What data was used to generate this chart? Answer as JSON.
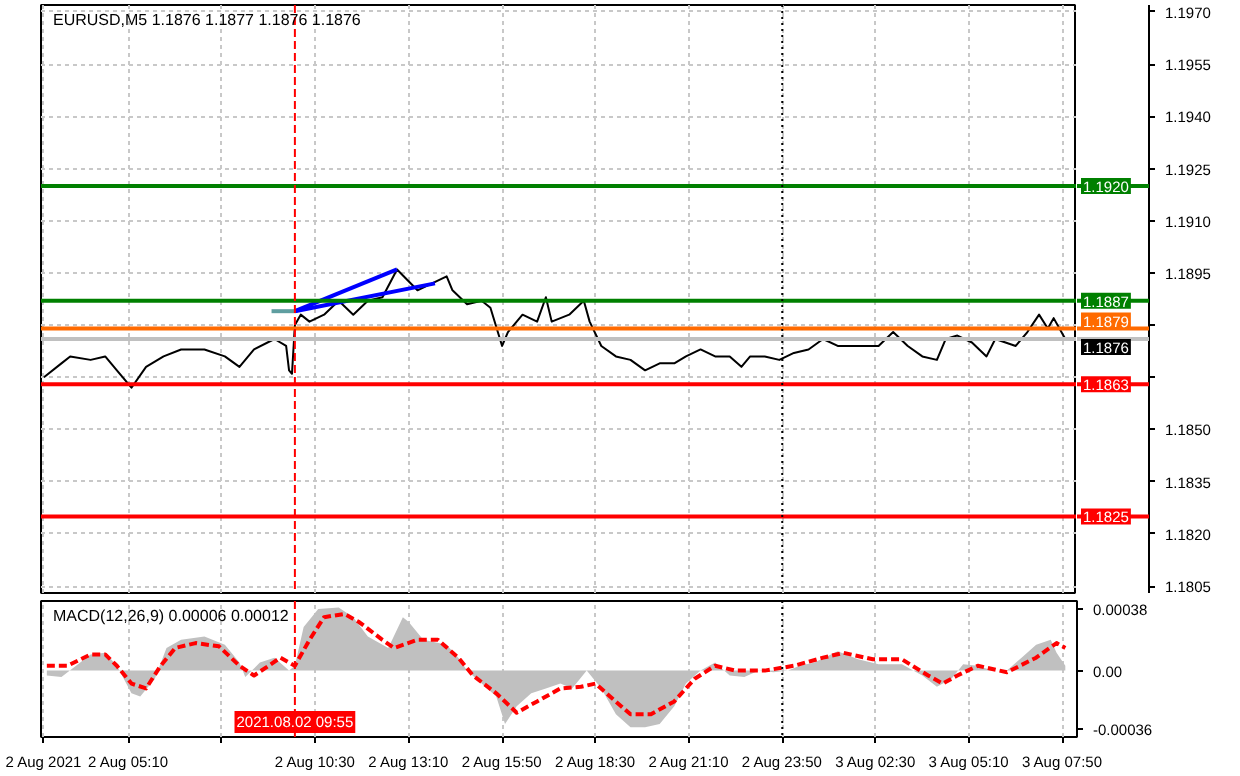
{
  "chart_data": [
    {
      "type": "line",
      "title": "EURUSD,M5  1.1876 1.1877 1.1876 1.1876",
      "x": [
        "2021-08-02T02:45",
        "2021-08-02T03:15",
        "2021-08-02T03:30",
        "2021-08-02T04:05",
        "2021-08-02T04:30",
        "2021-08-02T04:50",
        "2021-08-02T05:15",
        "2021-08-02T05:40",
        "2021-08-02T06:10",
        "2021-08-02T06:40",
        "2021-08-02T07:20",
        "2021-08-02T07:55",
        "2021-08-02T08:20",
        "2021-08-02T08:45",
        "2021-08-02T09:20",
        "2021-08-02T09:40",
        "2021-08-02T09:45",
        "2021-08-02T09:50",
        "2021-08-02T09:55",
        "2021-08-02T10:05",
        "2021-08-02T10:20",
        "2021-08-02T10:45",
        "2021-08-02T11:10",
        "2021-08-02T11:35",
        "2021-08-02T12:00",
        "2021-08-02T12:25",
        "2021-08-02T12:50",
        "2021-08-02T13:25",
        "2021-08-02T13:50",
        "2021-08-02T14:15",
        "2021-08-02T14:25",
        "2021-08-02T14:50",
        "2021-08-02T15:15",
        "2021-08-02T15:30",
        "2021-08-02T15:50",
        "2021-08-02T16:00",
        "2021-08-02T16:25",
        "2021-08-02T16:50",
        "2021-08-02T17:05",
        "2021-08-02T17:15",
        "2021-08-02T17:45",
        "2021-08-02T18:10",
        "2021-08-02T18:20",
        "2021-08-02T18:40",
        "2021-08-02T19:05",
        "2021-08-02T19:30",
        "2021-08-02T19:55",
        "2021-08-02T20:20",
        "2021-08-02T20:45",
        "2021-08-02T21:05",
        "2021-08-02T21:30",
        "2021-08-02T21:55",
        "2021-08-02T22:20",
        "2021-08-02T22:40",
        "2021-08-02T22:55",
        "2021-08-02T23:20",
        "2021-08-02T23:45",
        "2021-08-03T00:10",
        "2021-08-03T00:35",
        "2021-08-03T01:00",
        "2021-08-03T01:25",
        "2021-08-03T01:45",
        "2021-08-03T02:10",
        "2021-08-03T02:35",
        "2021-08-03T03:00",
        "2021-08-03T03:25",
        "2021-08-03T03:50",
        "2021-08-03T04:15",
        "2021-08-03T04:30",
        "2021-08-03T04:50",
        "2021-08-03T05:15",
        "2021-08-03T05:40",
        "2021-08-03T05:55",
        "2021-08-03T06:30",
        "2021-08-03T06:50",
        "2021-08-03T07:10",
        "2021-08-03T07:25",
        "2021-08-03T07:35",
        "2021-08-03T07:55"
      ],
      "series": [
        {
          "color": "#000000",
          "values": [
            1.1865,
            1.1869,
            1.1871,
            1.187,
            1.1871,
            1.1867,
            1.1862,
            1.1868,
            1.1871,
            1.1873,
            1.1873,
            1.1871,
            1.1868,
            1.1873,
            1.1876,
            1.1874,
            1.1867,
            1.1866,
            1.188,
            1.1883,
            1.1881,
            1.1883,
            1.1887,
            1.1883,
            1.1887,
            1.1888,
            1.1896,
            1.189,
            1.1892,
            1.1894,
            1.189,
            1.1886,
            1.1887,
            1.1885,
            1.1874,
            1.1878,
            1.1883,
            1.1881,
            1.1888,
            1.1881,
            1.1883,
            1.1887,
            1.1881,
            1.1874,
            1.1871,
            1.187,
            1.1867,
            1.1869,
            1.1869,
            1.1871,
            1.1873,
            1.1871,
            1.1871,
            1.1868,
            1.1871,
            1.1871,
            1.187,
            1.1872,
            1.1873,
            1.1876,
            1.1874,
            1.1874,
            1.1874,
            1.1874,
            1.1878,
            1.1874,
            1.1871,
            1.187,
            1.1876,
            1.1877,
            1.1875,
            1.1871,
            1.1876,
            1.1874,
            1.1878,
            1.1883,
            1.1879,
            1.1882,
            1.1876
          ]
        },
        {
          "type": "line",
          "color": "#0000ff",
          "x": [
            "2021-08-02T09:55",
            "2021-08-02T12:50"
          ],
          "values": [
            1.1884,
            1.1896
          ]
        },
        {
          "type": "line",
          "color": "#0000ff",
          "x": [
            "2021-08-02T09:55",
            "2021-08-02T13:55"
          ],
          "values": [
            1.1884,
            1.1892
          ]
        },
        {
          "type": "line",
          "color": "#5f9ea0",
          "x": [
            "2021-08-02T09:15",
            "2021-08-02T09:55"
          ],
          "values": [
            1.1884,
            1.1884
          ]
        }
      ],
      "xlim": [
        "2021-08-02T02:40",
        "2021-08-03T08:15"
      ],
      "xticks": [
        {
          "value": "2021-08-02T02:45",
          "label": null
        },
        {
          "value": "2021-08-02T05:10",
          "label": null
        },
        {
          "value": "2021-08-02T07:50",
          "label": null
        },
        {
          "value": "2021-08-02T10:30",
          "label": null
        },
        {
          "value": "2021-08-02T13:10",
          "label": null
        },
        {
          "value": "2021-08-02T15:50",
          "label": null
        },
        {
          "value": "2021-08-02T18:30",
          "label": null
        },
        {
          "value": "2021-08-02T21:10",
          "label": null
        },
        {
          "value": "2021-08-02T23:50",
          "label": null
        },
        {
          "value": "2021-08-03T02:30",
          "label": null
        },
        {
          "value": "2021-08-03T05:10",
          "label": null
        },
        {
          "value": "2021-08-03T07:50",
          "label": null
        }
      ],
      "ylim": [
        1.1803,
        1.1972
      ],
      "yticks": [
        {
          "value": 1.1805,
          "label": "1.1805"
        },
        {
          "value": 1.182,
          "label": "1.1820"
        },
        {
          "value": 1.1835,
          "label": "1.1835"
        },
        {
          "value": 1.185,
          "label": "1.1850"
        },
        {
          "value": 1.1865,
          "label": null
        },
        {
          "value": 1.188,
          "label": null
        },
        {
          "value": 1.1895,
          "label": "1.1895"
        },
        {
          "value": 1.191,
          "label": "1.1910"
        },
        {
          "value": 1.1925,
          "label": "1.1925"
        },
        {
          "value": 1.194,
          "label": "1.1940"
        },
        {
          "value": 1.1955,
          "label": "1.1955"
        },
        {
          "value": 1.197,
          "label": "1.1970"
        }
      ],
      "ref_lines": [
        {
          "axis": "y",
          "value": 1.192,
          "label": "1.1920",
          "color": "#008000",
          "line_style": "solid"
        },
        {
          "axis": "y",
          "value": 1.1887,
          "label": "1.1887",
          "color": "#008000",
          "line_style": "solid"
        },
        {
          "axis": "y",
          "value": 1.1879,
          "label": "1.1879",
          "color": "#ff6a00",
          "line_style": "solid"
        },
        {
          "axis": "y",
          "value": 1.1876,
          "label": "1.1876",
          "color": "#c0c0c0",
          "line_style": "solid"
        },
        {
          "axis": "y",
          "value": 1.1863,
          "label": "1.1863",
          "color": "#ff0000",
          "line_style": "solid"
        },
        {
          "axis": "y",
          "value": 1.1825,
          "label": "1.1825",
          "color": "#ff0000",
          "line_style": "solid"
        },
        {
          "axis": "x",
          "value": "2021-08-02T09:55",
          "color": "#ff0000",
          "line_style": "dashed"
        },
        {
          "axis": "x",
          "value": "2021-08-02T23:50",
          "color": "#000000",
          "line_style": "dotted"
        }
      ],
      "grid": true,
      "tick_labels": "y",
      "line_style": "solid"
    },
    {
      "type": "area",
      "title": "MACD(12,26,9) 0.00006 0.00012",
      "series": [
        {
          "type": "area",
          "color": "#c0c0c0",
          "x": [
            "2021-08-02T02:50",
            "2021-08-02T03:15",
            "2021-08-02T03:40",
            "2021-08-02T04:05",
            "2021-08-02T04:30",
            "2021-08-02T04:50",
            "2021-08-02T05:15",
            "2021-08-02T05:30",
            "2021-08-02T05:55",
            "2021-08-02T06:15",
            "2021-08-02T06:40",
            "2021-08-02T07:20",
            "2021-08-02T07:55",
            "2021-08-02T08:20",
            "2021-08-02T08:30",
            "2021-08-02T08:55",
            "2021-08-02T09:20",
            "2021-08-02T09:45",
            "2021-08-02T09:55",
            "2021-08-02T10:10",
            "2021-08-02T10:35",
            "2021-08-02T11:10",
            "2021-08-02T11:35",
            "2021-08-02T12:00",
            "2021-08-02T12:35",
            "2021-08-02T13:00",
            "2021-08-02T13:10",
            "2021-08-02T13:35",
            "2021-08-02T14:15",
            "2021-08-02T14:35",
            "2021-08-02T14:50",
            "2021-08-02T15:15",
            "2021-08-02T15:40",
            "2021-08-02T15:55",
            "2021-08-02T16:15",
            "2021-08-02T16:40",
            "2021-08-02T17:05",
            "2021-08-02T17:30",
            "2021-08-02T17:50",
            "2021-08-02T18:15",
            "2021-08-02T18:40",
            "2021-08-02T19:05",
            "2021-08-02T19:30",
            "2021-08-02T19:55",
            "2021-08-02T20:20",
            "2021-08-02T20:45",
            "2021-08-02T21:05",
            "2021-08-02T21:30",
            "2021-08-02T21:55",
            "2021-08-02T22:20",
            "2021-08-02T22:45",
            "2021-08-02T23:10",
            "2021-08-02T23:35",
            "2021-08-03T00:00",
            "2021-08-03T00:20",
            "2021-08-03T00:45",
            "2021-08-03T01:25",
            "2021-08-03T02:00",
            "2021-08-03T02:35",
            "2021-08-03T03:15",
            "2021-08-03T03:50",
            "2021-08-03T04:15",
            "2021-08-03T04:40",
            "2021-08-03T05:00",
            "2021-08-03T05:25",
            "2021-08-03T05:50",
            "2021-08-03T06:15",
            "2021-08-03T06:40",
            "2021-08-03T07:05",
            "2021-08-03T07:30",
            "2021-08-03T07:40",
            "2021-08-03T07:55"
          ],
          "values": [
            -3e-05,
            -4e-05,
            3e-05,
            0.0001,
            0.00011,
            3e-05,
            -0.00014,
            -0.00016,
            -5e-05,
            0.00014,
            0.00019,
            0.00021,
            0.00016,
            5e-05,
            -4e-05,
            5e-05,
            8e-05,
            0,
            3e-05,
            0.00027,
            0.00038,
            0.00039,
            0.00033,
            0.00021,
            0.00014,
            0.00033,
            0.0003,
            0.00019,
            0.00016,
            8e-05,
            0,
            -8e-05,
            -0.00016,
            -0.00033,
            -0.00022,
            -0.00014,
            -0.00011,
            -8e-05,
            -0.00011,
            0,
            -0.00011,
            -0.00027,
            -0.00035,
            -0.00035,
            -0.00033,
            -0.00022,
            -8e-05,
            0,
            5e-05,
            -3e-05,
            -4e-05,
            0,
            -1e-05,
            0,
            3e-05,
            5e-05,
            0.00012,
            7e-05,
            4e-05,
            4e-05,
            -3e-05,
            -0.0001,
            -5e-05,
            4e-05,
            3e-05,
            0,
            0,
            8e-05,
            0.00016,
            0.00019,
            0.00011,
            3e-05
          ]
        },
        {
          "type": "line",
          "color": "#ff0000",
          "x": [
            "2021-08-02T02:50",
            "2021-08-02T03:25",
            "2021-08-02T04:05",
            "2021-08-02T04:30",
            "2021-08-02T04:50",
            "2021-08-02T05:15",
            "2021-08-02T05:40",
            "2021-08-02T06:05",
            "2021-08-02T06:30",
            "2021-08-02T07:05",
            "2021-08-02T07:45",
            "2021-08-02T08:20",
            "2021-08-02T08:45",
            "2021-08-02T09:10",
            "2021-08-02T09:30",
            "2021-08-02T09:55",
            "2021-08-02T10:20",
            "2021-08-02T10:45",
            "2021-08-02T11:20",
            "2021-08-02T11:45",
            "2021-08-02T12:25",
            "2021-08-02T12:45",
            "2021-08-02T13:25",
            "2021-08-02T14:00",
            "2021-08-02T14:35",
            "2021-08-02T15:00",
            "2021-08-02T15:40",
            "2021-08-02T16:15",
            "2021-08-02T16:50",
            "2021-08-02T17:30",
            "2021-08-02T18:05",
            "2021-08-02T18:30",
            "2021-08-02T18:55",
            "2021-08-02T19:30",
            "2021-08-02T20:05",
            "2021-08-02T20:45",
            "2021-08-02T21:20",
            "2021-08-02T21:55",
            "2021-08-02T22:30",
            "2021-08-02T23:20",
            "2021-08-03T00:10",
            "2021-08-03T01:00",
            "2021-08-03T01:35",
            "2021-08-03T02:25",
            "2021-08-03T03:15",
            "2021-08-03T04:00",
            "2021-08-03T04:25",
            "2021-08-03T04:50",
            "2021-08-03T05:25",
            "2021-08-03T06:15",
            "2021-08-03T07:05",
            "2021-08-03T07:40",
            "2021-08-03T07:55"
          ],
          "values": [
            3e-05,
            3e-05,
            0.0001,
            0.0001,
            3e-05,
            -8e-05,
            -0.00011,
            3e-05,
            0.00014,
            0.00017,
            0.00015,
            3e-05,
            -3e-05,
            3e-05,
            8e-05,
            3e-05,
            0.00019,
            0.00033,
            0.00035,
            0.0003,
            0.00019,
            0.00014,
            0.00019,
            0.00019,
            8e-05,
            -3e-05,
            -0.00014,
            -0.00026,
            -0.00019,
            -0.00011,
            -0.0001,
            -8e-05,
            -0.00016,
            -0.00027,
            -0.00027,
            -0.00019,
            -5e-05,
            3e-05,
            0,
            0,
            3e-05,
            8e-05,
            0.00011,
            7e-05,
            7e-05,
            -3e-05,
            -8e-05,
            -3e-05,
            3e-05,
            -1e-05,
            8e-05,
            0.00017,
            0.00014
          ]
        }
      ],
      "xlim": [
        "2021-08-02T02:40",
        "2021-08-03T08:15"
      ],
      "xticks": [
        {
          "value": "2021-08-02T02:45",
          "label": "2 Aug 2021"
        },
        {
          "value": "2021-08-02T05:10",
          "label": "2 Aug 05:10"
        },
        {
          "value": "2021-08-02T07:50",
          "label": null
        },
        {
          "value": "2021-08-02T10:30",
          "label": "2 Aug 10:30"
        },
        {
          "value": "2021-08-02T13:10",
          "label": "2 Aug 13:10"
        },
        {
          "value": "2021-08-02T15:50",
          "label": "2 Aug 15:50"
        },
        {
          "value": "2021-08-02T18:30",
          "label": "2 Aug 18:30"
        },
        {
          "value": "2021-08-02T21:10",
          "label": "2 Aug 21:10"
        },
        {
          "value": "2021-08-02T23:50",
          "label": "2 Aug 23:50"
        },
        {
          "value": "2021-08-03T02:30",
          "label": "3 Aug 02:30"
        },
        {
          "value": "2021-08-03T05:10",
          "label": "3 Aug 05:10"
        },
        {
          "value": "2021-08-03T07:50",
          "label": "3 Aug 07:50"
        }
      ],
      "ylim": [
        -0.00041,
        0.00043
      ],
      "yticks": [
        -0.00036,
        {
          "value": 0,
          "label": "0.00"
        },
        0.00038
      ],
      "ref_lines": [
        {
          "axis": "x",
          "value": "2021-08-02T09:55",
          "label": "2021.08.02 09:55",
          "color": "#ff0000",
          "line_style": "dashed"
        },
        {
          "axis": "x",
          "value": "2021-08-02T23:50",
          "color": "#000000",
          "line_style": "dotted"
        }
      ],
      "grid": "x",
      "line_style": "dashed"
    }
  ]
}
